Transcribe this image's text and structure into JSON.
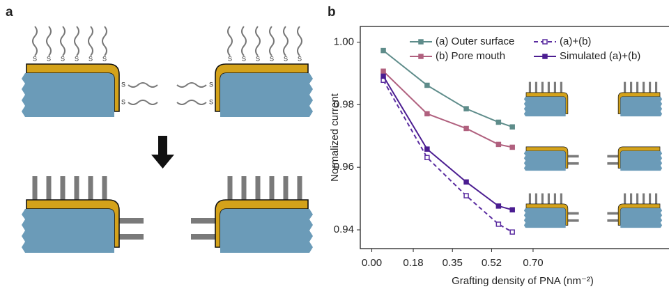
{
  "panel_labels": [
    "a",
    "b"
  ],
  "schematic": {
    "sulfur": "S"
  },
  "chart_data": {
    "type": "line",
    "y_label": "Normalized current",
    "x_label": "Grafting density of PNA (nm⁻²)",
    "x": [
      0.05,
      0.24,
      0.41,
      0.55,
      0.61
    ],
    "xlim": [
      -0.05,
      1.29
    ],
    "ylim": [
      0.934,
      1.005
    ],
    "xticks": [
      {
        "value": 0,
        "label": "0.00"
      },
      0.18,
      0.35,
      0.52,
      {
        "value": 0.7,
        "label": "0.70"
      }
    ],
    "yticks": [
      {
        "value": 0.94,
        "label": "0.94"
      },
      {
        "value": 0.96,
        "label": "0.96"
      },
      {
        "value": 0.98,
        "label": "0.98"
      },
      {
        "value": 1.0,
        "label": "1.00"
      }
    ],
    "series": [
      {
        "name": "(a) Outer surface",
        "color": "#5e8c8a",
        "dashed": false,
        "open_marker": false,
        "values": [
          0.9973,
          0.9862,
          0.9787,
          0.9744,
          0.9729
        ]
      },
      {
        "name": "(a)+(b)",
        "color": "#5a2ca0",
        "dashed": true,
        "open_marker": true,
        "values": [
          0.9878,
          0.9631,
          0.9509,
          0.9418,
          0.9393
        ]
      },
      {
        "name": "(b) Pore mouth",
        "color": "#b0607e",
        "dashed": false,
        "open_marker": false,
        "values": [
          0.9907,
          0.9771,
          0.9724,
          0.9673,
          0.9664
        ]
      },
      {
        "name": "Simulated (a)+(b)",
        "color": "#4b1d91",
        "dashed": false,
        "open_marker": false,
        "values": [
          0.9891,
          0.9658,
          0.9553,
          0.9476,
          0.9464
        ]
      }
    ]
  }
}
